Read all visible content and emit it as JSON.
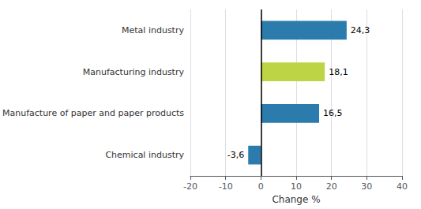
{
  "chart_data": {
    "type": "bar",
    "orientation": "horizontal",
    "categories": [
      "Metal industry",
      "Manufacturing industry",
      "Manufacture of paper and paper products",
      "Chemical industry"
    ],
    "values": [
      24.3,
      18.1,
      16.5,
      -3.6
    ],
    "value_labels": [
      "24,3",
      "18,1",
      "16,5",
      "-3,6"
    ],
    "colors": [
      "#2b7bac",
      "#bdd444",
      "#2b7bac",
      "#2b7bac"
    ],
    "data_labels": true,
    "xlabel": "Change %",
    "xlim": [
      -20,
      40
    ],
    "xticks": [
      -20,
      -10,
      0,
      10,
      20,
      30,
      40
    ],
    "grid": true
  }
}
